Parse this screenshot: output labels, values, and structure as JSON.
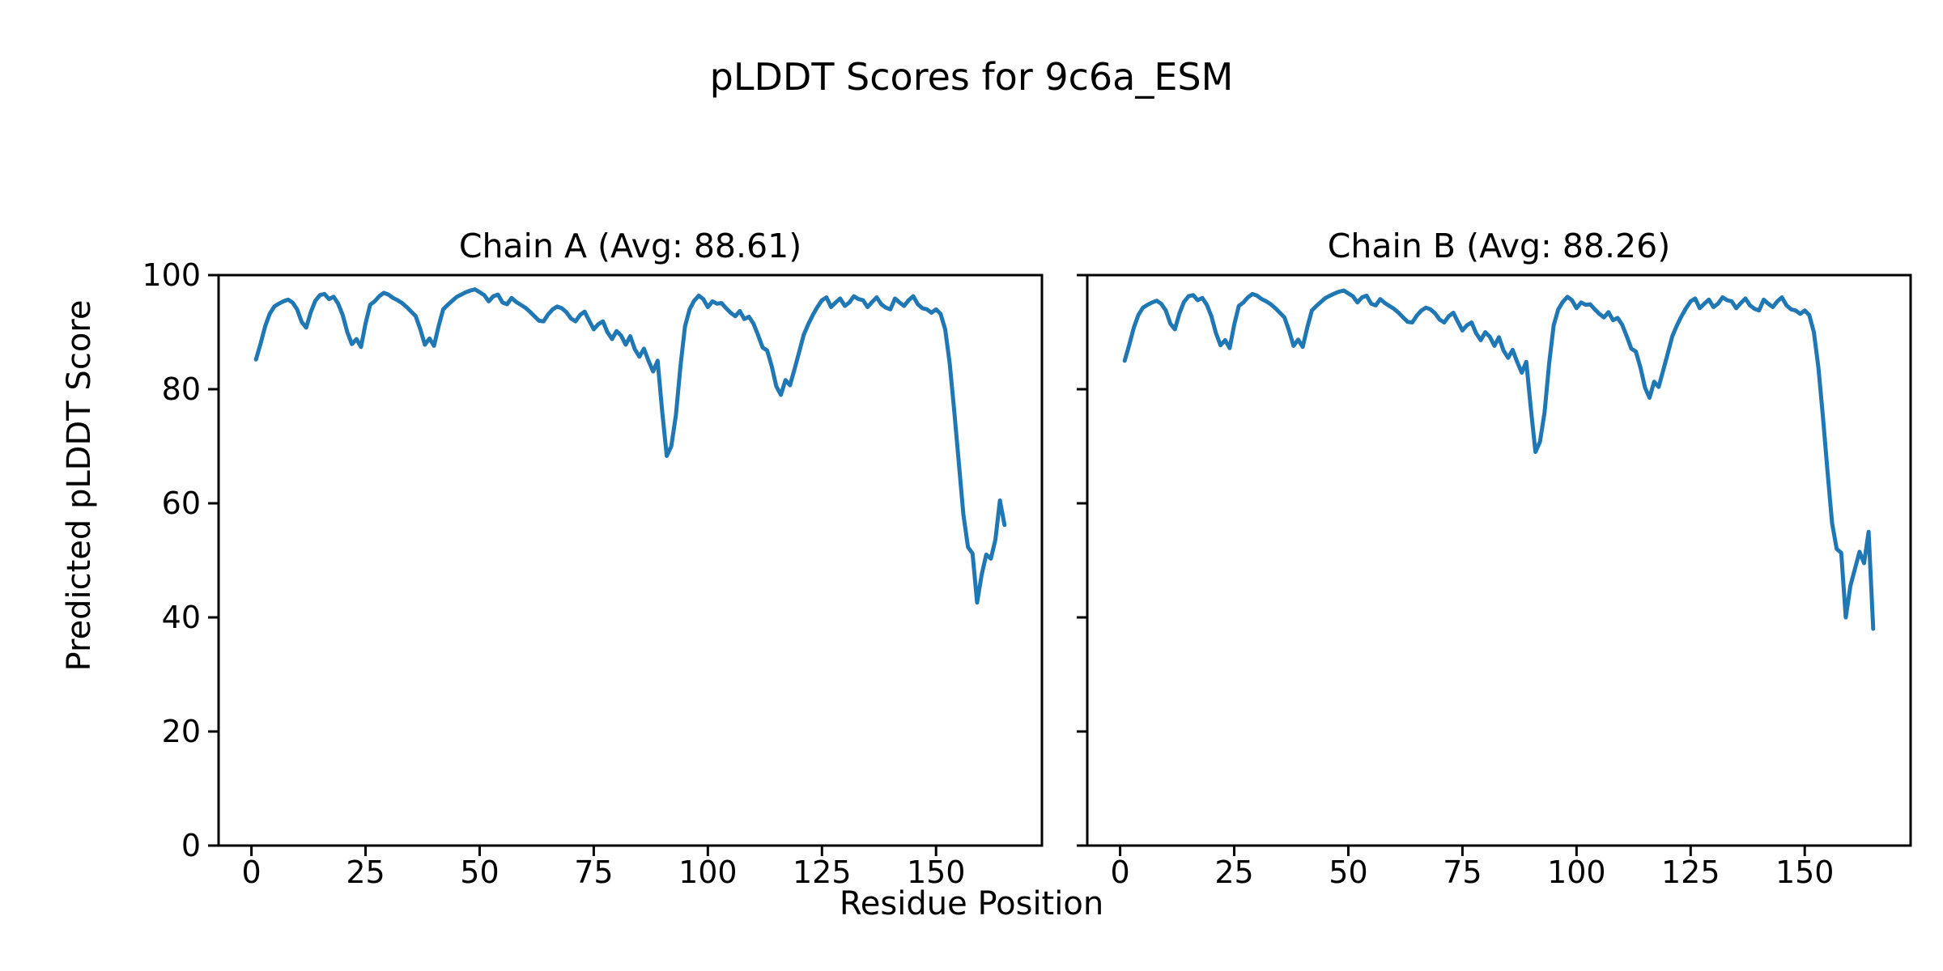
{
  "figure": {
    "title": "pLDDT Scores for 9c6a_ESM",
    "xlabel": "Residue Position",
    "ylabel": "Predicted pLDDT Score",
    "background_color": "#ffffff",
    "text_color": "#000000"
  },
  "chart_data": [
    {
      "type": "line",
      "title": "Chain A (Avg: 88.61)",
      "chain": "A",
      "avg_plddt": 88.61,
      "line_color": "#1f77b4",
      "x_start": 1,
      "xlim": [
        -7.2,
        173.2
      ],
      "ylim": [
        0,
        100
      ],
      "xticks": [
        0,
        25,
        50,
        75,
        100,
        125,
        150
      ],
      "yticks": [
        0,
        20,
        40,
        60,
        80,
        100
      ],
      "show_y_tick_labels": true,
      "grid": false,
      "legend": false,
      "values": [
        85.2,
        88.0,
        91.0,
        93.2,
        94.5,
        95.0,
        95.4,
        95.7,
        95.2,
        94.0,
        91.8,
        90.8,
        93.5,
        95.5,
        96.5,
        96.7,
        95.8,
        96.2,
        95.0,
        93.0,
        90.0,
        87.9,
        88.8,
        87.4,
        91.5,
        94.8,
        95.4,
        96.3,
        96.9,
        96.6,
        96.0,
        95.6,
        95.1,
        94.4,
        93.6,
        92.8,
        90.5,
        87.8,
        88.9,
        87.6,
        91.0,
        94.0,
        94.8,
        95.5,
        96.2,
        96.6,
        97.0,
        97.3,
        97.5,
        97.0,
        96.5,
        95.4,
        96.3,
        96.6,
        95.2,
        94.9,
        96.0,
        95.3,
        94.8,
        94.3,
        93.6,
        92.8,
        92.0,
        91.9,
        93.1,
        94.0,
        94.5,
        94.2,
        93.5,
        92.4,
        91.9,
        93.0,
        93.6,
        92.0,
        90.5,
        91.4,
        91.9,
        90.0,
        88.8,
        90.2,
        89.4,
        87.8,
        89.3,
        87.0,
        85.7,
        87.1,
        85.0,
        83.1,
        85.0,
        76.0,
        68.3,
        70.0,
        75.5,
        84.0,
        91.0,
        94.0,
        95.5,
        96.4,
        95.8,
        94.4,
        95.4,
        95.0,
        95.1,
        94.2,
        93.4,
        92.8,
        93.7,
        92.3,
        92.7,
        91.5,
        89.5,
        87.3,
        86.8,
        84.0,
        80.5,
        79.0,
        81.6,
        80.7,
        83.5,
        86.5,
        89.5,
        91.4,
        93.0,
        94.4,
        95.6,
        96.1,
        94.4,
        95.2,
        95.9,
        94.6,
        95.2,
        96.3,
        95.8,
        95.6,
        94.4,
        95.3,
        96.1,
        94.9,
        94.3,
        94.0,
        95.9,
        95.2,
        94.6,
        95.6,
        96.3,
        94.9,
        94.2,
        94.0,
        93.4,
        94.0,
        93.2,
        90.5,
        84.5,
        76.0,
        67.0,
        58.0,
        52.3,
        51.2,
        42.6,
        47.5,
        51.0,
        50.3,
        53.6,
        60.5,
        56.2
      ]
    },
    {
      "type": "line",
      "title": "Chain B (Avg: 88.26)",
      "chain": "B",
      "avg_plddt": 88.26,
      "line_color": "#1f77b4",
      "x_start": 1,
      "xlim": [
        -7.2,
        173.2
      ],
      "ylim": [
        0,
        100
      ],
      "xticks": [
        0,
        25,
        50,
        75,
        100,
        125,
        150
      ],
      "yticks": [
        0,
        20,
        40,
        60,
        80,
        100
      ],
      "show_y_tick_labels": false,
      "grid": false,
      "legend": false,
      "values": [
        85.0,
        87.8,
        90.8,
        93.0,
        94.3,
        94.8,
        95.2,
        95.5,
        95.0,
        93.8,
        91.5,
        90.5,
        93.3,
        95.3,
        96.3,
        96.5,
        95.6,
        96.0,
        94.8,
        92.8,
        89.8,
        87.7,
        88.6,
        87.2,
        91.3,
        94.6,
        95.2,
        96.1,
        96.7,
        96.4,
        95.8,
        95.4,
        94.9,
        94.2,
        93.4,
        92.6,
        90.3,
        87.6,
        88.7,
        87.4,
        90.8,
        93.8,
        94.6,
        95.3,
        96.0,
        96.4,
        96.8,
        97.1,
        97.3,
        96.8,
        96.3,
        95.2,
        96.1,
        96.4,
        95.0,
        94.7,
        95.8,
        95.1,
        94.6,
        94.1,
        93.4,
        92.6,
        91.8,
        91.7,
        92.9,
        93.8,
        94.3,
        94.0,
        93.3,
        92.2,
        91.7,
        92.8,
        93.4,
        91.8,
        90.3,
        91.2,
        91.7,
        89.8,
        88.6,
        90.0,
        89.2,
        87.6,
        89.1,
        86.8,
        85.5,
        86.9,
        84.8,
        82.9,
        84.8,
        76.5,
        69.0,
        70.8,
        76.0,
        84.5,
        91.2,
        94.0,
        95.3,
        96.2,
        95.6,
        94.2,
        95.2,
        94.8,
        94.9,
        94.0,
        93.2,
        92.6,
        93.5,
        92.1,
        92.5,
        91.3,
        89.3,
        87.1,
        86.6,
        83.8,
        80.3,
        78.5,
        81.3,
        80.4,
        83.3,
        86.3,
        89.3,
        91.2,
        92.8,
        94.2,
        95.4,
        95.9,
        94.2,
        95.0,
        95.7,
        94.4,
        95.0,
        96.1,
        95.6,
        95.4,
        94.2,
        95.1,
        95.9,
        94.7,
        94.1,
        93.8,
        95.7,
        95.0,
        94.4,
        95.4,
        96.1,
        94.7,
        94.0,
        93.8,
        93.2,
        93.8,
        93.0,
        90.0,
        83.8,
        75.0,
        65.5,
        56.5,
        52.0,
        51.3,
        40.0,
        45.5,
        48.5,
        51.5,
        49.5,
        55.0,
        38.0
      ]
    }
  ]
}
